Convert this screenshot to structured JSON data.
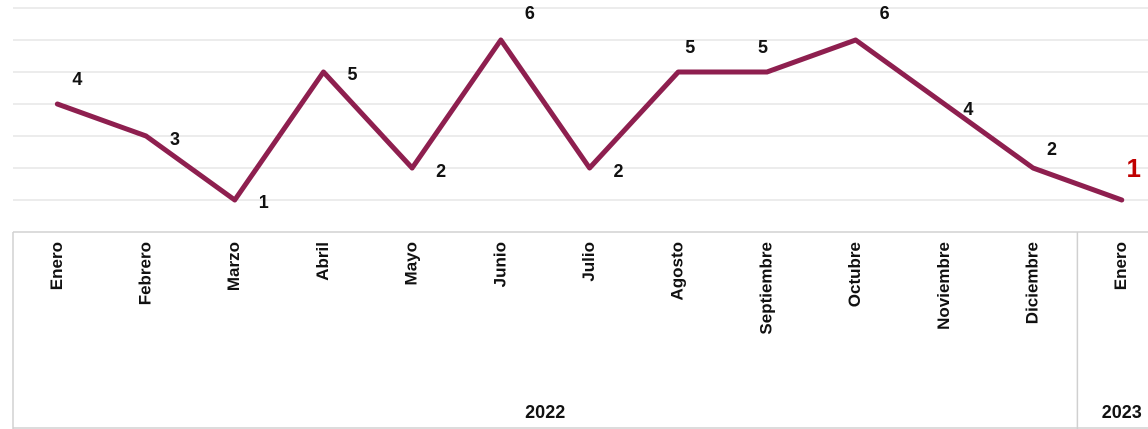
{
  "chart_data": {
    "type": "line",
    "groups": [
      {
        "label": "2022",
        "categories": [
          "Enero",
          "Febrero",
          "Marzo",
          "Abril",
          "Mayo",
          "Junio",
          "Julio",
          "Agosto",
          "Septiembre",
          "Octubre",
          "Noviembre",
          "Diciembre"
        ]
      },
      {
        "label": "2023",
        "categories": [
          "Enero"
        ]
      }
    ],
    "series": [
      {
        "color": "#8e1f4f",
        "values": [
          4,
          3,
          1,
          5,
          2,
          6,
          2,
          5,
          5,
          6,
          4,
          2,
          1
        ]
      }
    ],
    "ylim": [
      0,
      7
    ],
    "yticks": [
      0,
      1,
      2,
      3,
      4,
      5,
      6,
      7
    ],
    "grid": true
  }
}
